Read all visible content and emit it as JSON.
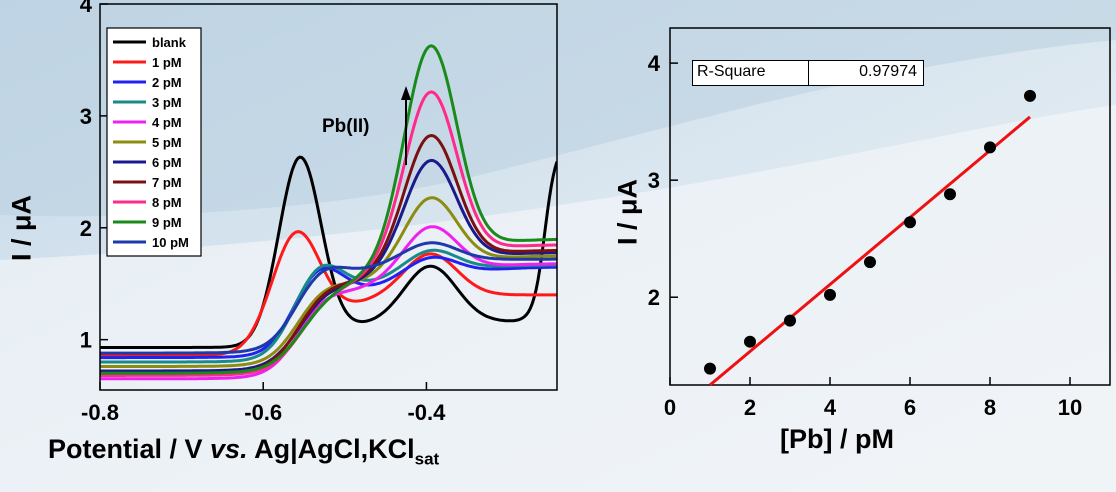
{
  "colors": {
    "blank": "#000000",
    "1 pM": "#ff1a1a",
    "2 pM": "#2222ee",
    "3 pM": "#188a8a",
    "4 pM": "#ee22ee",
    "5 pM": "#8c8c10",
    "6 pM": "#1a1a8c",
    "7 pM": "#7a1010",
    "8 pM": "#ff2a8c",
    "9 pM": "#1a8a1a",
    "10 pM": "#1e3aa8",
    "fit": "#ee1111"
  },
  "annotation": {
    "text": "Pb(II)",
    "icon": "arrow-up-icon"
  },
  "left_xlabel": {
    "main": "Potential   /  V ",
    "italic": "vs.",
    "rest": " Ag|AgCl,KCl",
    "sub": "sat"
  },
  "left_ylabel": {
    "text": "I  /  μA"
  },
  "right_xlabel": {
    "text": "[Pb]   /   pM"
  },
  "right_ylabel": {
    "text": "I  /  μA"
  },
  "rsq": {
    "label": "R-Square",
    "value": "0.97974"
  },
  "chart_data": [
    {
      "type": "line",
      "xlabel": "Potential / V vs. Ag|AgCl,KCl sat",
      "ylabel": "I / μA",
      "xlim": [
        -0.8,
        -0.24
      ],
      "ylim": [
        0.55,
        4.0
      ],
      "xticks": [
        -0.8,
        -0.6,
        -0.4
      ],
      "xtick_labels": [
        "-0.8",
        "-0.6",
        "-0.4"
      ],
      "yticks": [
        1,
        2,
        3,
        4
      ],
      "ytick_labels": [
        "1",
        "2",
        "3",
        "4"
      ],
      "legend": "top-left",
      "series": [
        {
          "name": "blank",
          "p1": 2.7,
          "b1": 0.93,
          "p2": 1.6,
          "b2": 1.16,
          "dip": 1.16
        },
        {
          "name": "1 pM",
          "p1": 2.27,
          "b1": 0.86,
          "p2": 1.7,
          "b2": 1.4,
          "dip": 1.4
        },
        {
          "name": "2 pM",
          "p1": 1.88,
          "b1": 0.84,
          "p2": 1.77,
          "b2": 1.65,
          "dip": 1.5
        },
        {
          "name": "3 pM",
          "p1": 1.95,
          "b1": 0.8,
          "p2": 1.81,
          "b2": 1.67,
          "dip": 1.55
        },
        {
          "name": "4 pM",
          "p1": 1.7,
          "b1": 0.65,
          "p2": 2.03,
          "b2": 1.68,
          "dip": 1.55
        },
        {
          "name": "5 pM",
          "p1": 1.75,
          "b1": 0.76,
          "p2": 2.3,
          "b2": 1.75,
          "dip": 1.6
        },
        {
          "name": "6 pM",
          "p1": 1.73,
          "b1": 0.72,
          "p2": 2.64,
          "b2": 1.78,
          "dip": 1.62
        },
        {
          "name": "7 pM",
          "p1": 1.77,
          "b1": 0.7,
          "p2": 2.87,
          "b2": 1.8,
          "dip": 1.63
        },
        {
          "name": "8 pM",
          "p1": 1.71,
          "b1": 0.68,
          "p2": 3.28,
          "b2": 1.85,
          "dip": 1.65
        },
        {
          "name": "9 pM",
          "p1": 1.7,
          "b1": 0.7,
          "p2": 3.72,
          "b2": 1.9,
          "dip": 1.66
        },
        {
          "name": "10 pM",
          "p1": 1.92,
          "b1": 0.88,
          "p2": 1.8,
          "b2": 1.72,
          "dip": 1.7
        }
      ]
    },
    {
      "type": "scatter",
      "xlabel": "[Pb] / pM",
      "ylabel": "I / μA",
      "xlim": [
        0,
        11
      ],
      "ylim": [
        1.25,
        4.3
      ],
      "xticks": [
        0,
        2,
        4,
        6,
        8,
        10
      ],
      "xtick_labels": [
        "0",
        "2",
        "4",
        "6",
        "8",
        "10"
      ],
      "yticks": [
        2,
        3,
        4
      ],
      "ytick_labels": [
        "2",
        "3",
        "4"
      ],
      "x": [
        1,
        2,
        3,
        4,
        5,
        6,
        7,
        8,
        9
      ],
      "y": [
        1.39,
        1.62,
        1.8,
        2.02,
        2.3,
        2.64,
        2.88,
        3.28,
        3.72
      ],
      "fit": {
        "x": [
          1,
          9
        ],
        "y": [
          1.25,
          3.54
        ]
      },
      "r_square": 0.97974
    }
  ]
}
